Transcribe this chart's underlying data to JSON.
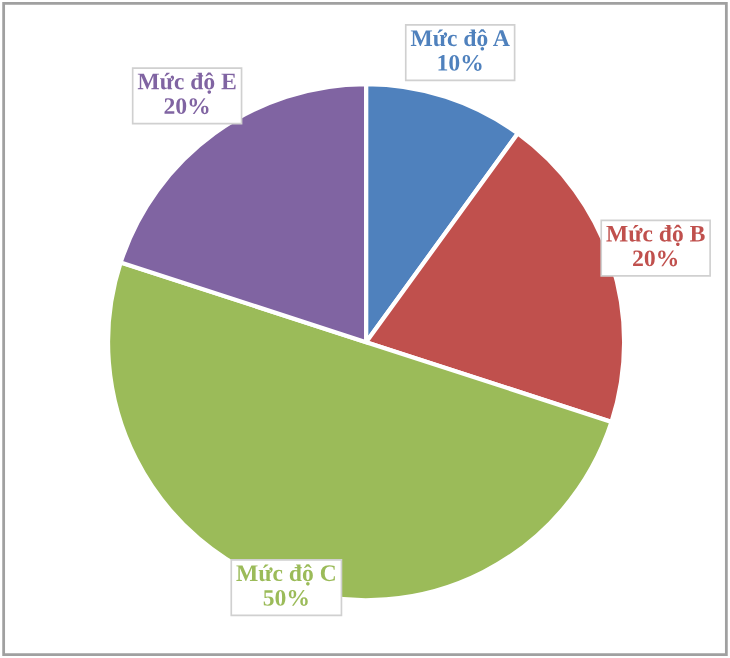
{
  "chart_data": {
    "type": "pie",
    "categories": [
      "Mức độ A",
      "Mức độ B",
      "Mức độ C",
      "Mức độ E"
    ],
    "values": [
      10,
      20,
      50,
      20
    ],
    "value_labels": [
      "10%",
      "20%",
      "50%",
      "20%"
    ],
    "colors": [
      "#4f81bd",
      "#c0504d",
      "#9bbb59",
      "#8064a2"
    ],
    "legend": false
  }
}
